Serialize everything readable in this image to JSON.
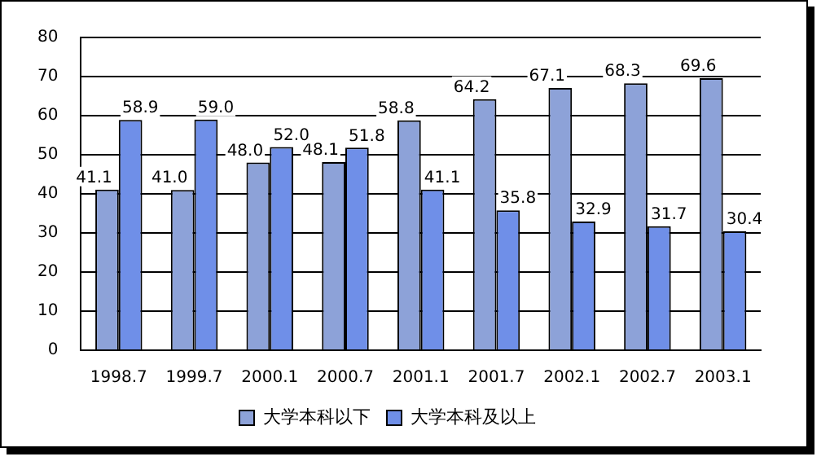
{
  "chart_data": {
    "type": "bar",
    "categories": [
      "1998.7",
      "1999.7",
      "2000.1",
      "2000.7",
      "2001.1",
      "2001.7",
      "2002.1",
      "2002.7",
      "2003.1"
    ],
    "series": [
      {
        "name": "大学本科以下",
        "color": "#8da2d8",
        "values": [
          41.1,
          41.0,
          48.0,
          48.1,
          58.8,
          64.2,
          67.1,
          68.3,
          69.6
        ],
        "value_labels": [
          "41.1",
          "41.0",
          "48.0",
          "48.1",
          "58.8",
          "64.2",
          "67.1",
          "68.3",
          "69.6"
        ]
      },
      {
        "name": "大学本科及以上",
        "color": "#6f8fe8",
        "values": [
          58.9,
          59.0,
          52.0,
          51.8,
          41.1,
          35.8,
          32.9,
          31.7,
          30.4
        ],
        "value_labels": [
          "58.9",
          "59.0",
          "52.0",
          "51.8",
          "41.1",
          "35.8",
          "32.9",
          "31.7",
          "30.4"
        ]
      }
    ],
    "ylim": [
      0,
      80
    ],
    "yticks": [
      0,
      10,
      20,
      30,
      40,
      50,
      60,
      70,
      80
    ],
    "grid": "y",
    "legend": "bottom"
  }
}
